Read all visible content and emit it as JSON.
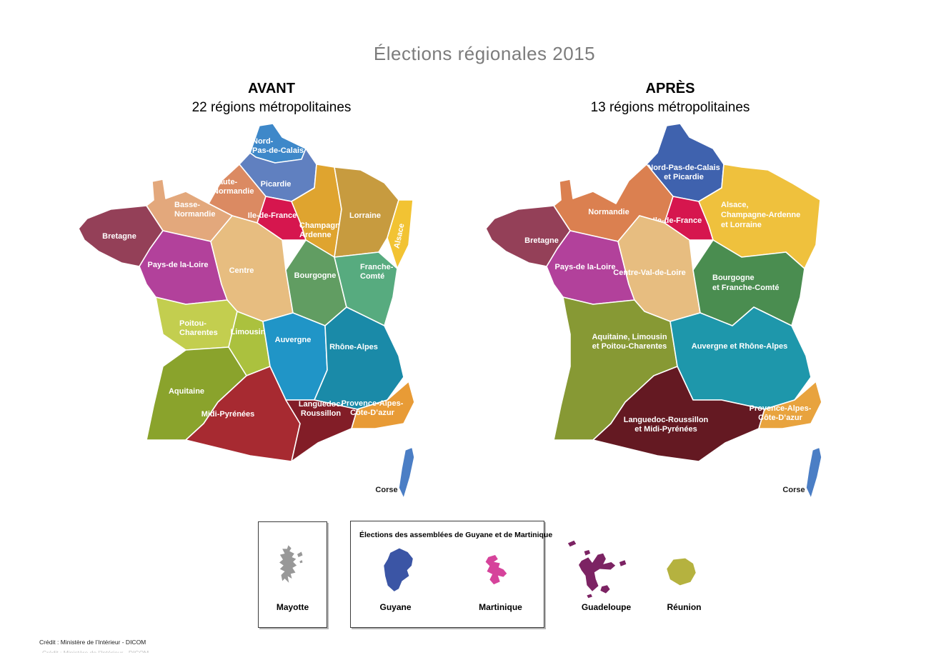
{
  "page": {
    "title": "Élections régionales 2015",
    "credit": "Crédit : Ministère de l’Intérieur - DICOM"
  },
  "panels": {
    "avant": {
      "heading": "AVANT",
      "subheading": "22 régions métropolitaines",
      "regions": [
        {
          "id": "nord_pas_de_calais",
          "label_lines": [
            "Nord-",
            "Pas-de-Calais"
          ],
          "color": "#3e88c9"
        },
        {
          "id": "picardie",
          "label_lines": [
            "Picardie"
          ],
          "color": "#6080c0"
        },
        {
          "id": "haute_normandie",
          "label_lines": [
            "Haute-",
            "Normandie"
          ],
          "color": "#db8a62"
        },
        {
          "id": "basse_normandie",
          "label_lines": [
            "Basse-",
            "Normandie"
          ],
          "color": "#e3a87c"
        },
        {
          "id": "ile_de_france",
          "label_lines": [
            "Ile-de-France"
          ],
          "color": "#d6164e"
        },
        {
          "id": "champagne_ardenne",
          "label_lines": [
            "Champagne-",
            "Ardenne"
          ],
          "color": "#dfa42f"
        },
        {
          "id": "lorraine",
          "label_lines": [
            "Lorraine"
          ],
          "color": "#c79b3f"
        },
        {
          "id": "alsace",
          "label_lines": [
            "Alsace"
          ],
          "color": "#f2c333"
        },
        {
          "id": "bretagne",
          "label_lines": [
            "Bretagne"
          ],
          "color": "#944058"
        },
        {
          "id": "pays_de_la_loire",
          "label_lines": [
            "Pays-de la-Loire"
          ],
          "color": "#b2419b"
        },
        {
          "id": "centre",
          "label_lines": [
            "Centre"
          ],
          "color": "#e7bd80"
        },
        {
          "id": "bourgogne",
          "label_lines": [
            "Bourgogne"
          ],
          "color": "#619d62"
        },
        {
          "id": "franche_comte",
          "label_lines": [
            "Franche-",
            "Comté"
          ],
          "color": "#57ab7f"
        },
        {
          "id": "poitou_charentes",
          "label_lines": [
            "Poitou-",
            "Charentes"
          ],
          "color": "#c3ce4f"
        },
        {
          "id": "limousin",
          "label_lines": [
            "Limousin"
          ],
          "color": "#abc13e"
        },
        {
          "id": "auvergne",
          "label_lines": [
            "Auvergne"
          ],
          "color": "#2095c7"
        },
        {
          "id": "rhone_alpes",
          "label_lines": [
            "Rhône-Alpes"
          ],
          "color": "#1a8aa8"
        },
        {
          "id": "aquitaine",
          "label_lines": [
            "Aquitaine"
          ],
          "color": "#8aa32c"
        },
        {
          "id": "midi_pyrenees",
          "label_lines": [
            "Midi-Pyrénées"
          ],
          "color": "#a72a31"
        },
        {
          "id": "languedoc_roussillon",
          "label_lines": [
            "Languedoc-",
            "Roussillon"
          ],
          "color": "#821d27"
        },
        {
          "id": "paca",
          "label_lines": [
            "Provence-Alpes-",
            "Côte-D’azur"
          ],
          "color": "#e89b36"
        },
        {
          "id": "corse",
          "label_lines": [
            "Corse"
          ],
          "color": "#4b7ec5"
        }
      ]
    },
    "apres": {
      "heading": "APRÈS",
      "subheading": "13 régions métropolitaines",
      "regions": [
        {
          "id": "npdc_picardie",
          "label_lines": [
            "Nord-Pas-de-Calais",
            "et Picardie"
          ],
          "color": "#3f62ae"
        },
        {
          "id": "normandie",
          "label_lines": [
            "Normandie"
          ],
          "color": "#db8050"
        },
        {
          "id": "ile_de_france",
          "label_lines": [
            "Ile-de-France"
          ],
          "color": "#d6164e"
        },
        {
          "id": "acal",
          "label_lines": [
            "Alsace,",
            "Champagne-Ardenne",
            "et Lorraine"
          ],
          "color": "#efc13d"
        },
        {
          "id": "bretagne",
          "label_lines": [
            "Bretagne"
          ],
          "color": "#944058"
        },
        {
          "id": "pays_de_la_loire",
          "label_lines": [
            "Pays-de la-Loire"
          ],
          "color": "#b2419b"
        },
        {
          "id": "centre_val_de_loire",
          "label_lines": [
            "Centre-Val-de-Loire"
          ],
          "color": "#e7bd80"
        },
        {
          "id": "bourgogne_franche_comte",
          "label_lines": [
            "Bourgogne",
            "et Franche-Comté"
          ],
          "color": "#4a8d50"
        },
        {
          "id": "alpc",
          "label_lines": [
            "Aquitaine, Limousin",
            "et Poitou-Charentes"
          ],
          "color": "#879934"
        },
        {
          "id": "aura",
          "label_lines": [
            "Auvergne et Rhône-Alpes"
          ],
          "color": "#1e97ab"
        },
        {
          "id": "lrmp",
          "label_lines": [
            "Languedoc-Roussillon",
            "et Midi-Pyrénées"
          ],
          "color": "#641922"
        },
        {
          "id": "paca",
          "label_lines": [
            "Provence-Alpes-",
            "Côte-D’azur"
          ],
          "color": "#e8a33e"
        },
        {
          "id": "corse",
          "label_lines": [
            "Corse"
          ],
          "color": "#4b7ec5"
        }
      ]
    }
  },
  "overseas": {
    "mayotte": {
      "name": "Mayotte",
      "color": "#989898"
    },
    "assemblies_box": {
      "title": "Élections des assemblées de Guyane et de Martinique",
      "guyane": {
        "name": "Guyane",
        "color": "#3b55a5"
      },
      "martinique": {
        "name": "Martinique",
        "color": "#d6439b"
      }
    },
    "guadeloupe": {
      "name": "Guadeloupe",
      "color": "#7c2363"
    },
    "reunion": {
      "name": "Réunion",
      "color": "#b5b23f"
    }
  }
}
